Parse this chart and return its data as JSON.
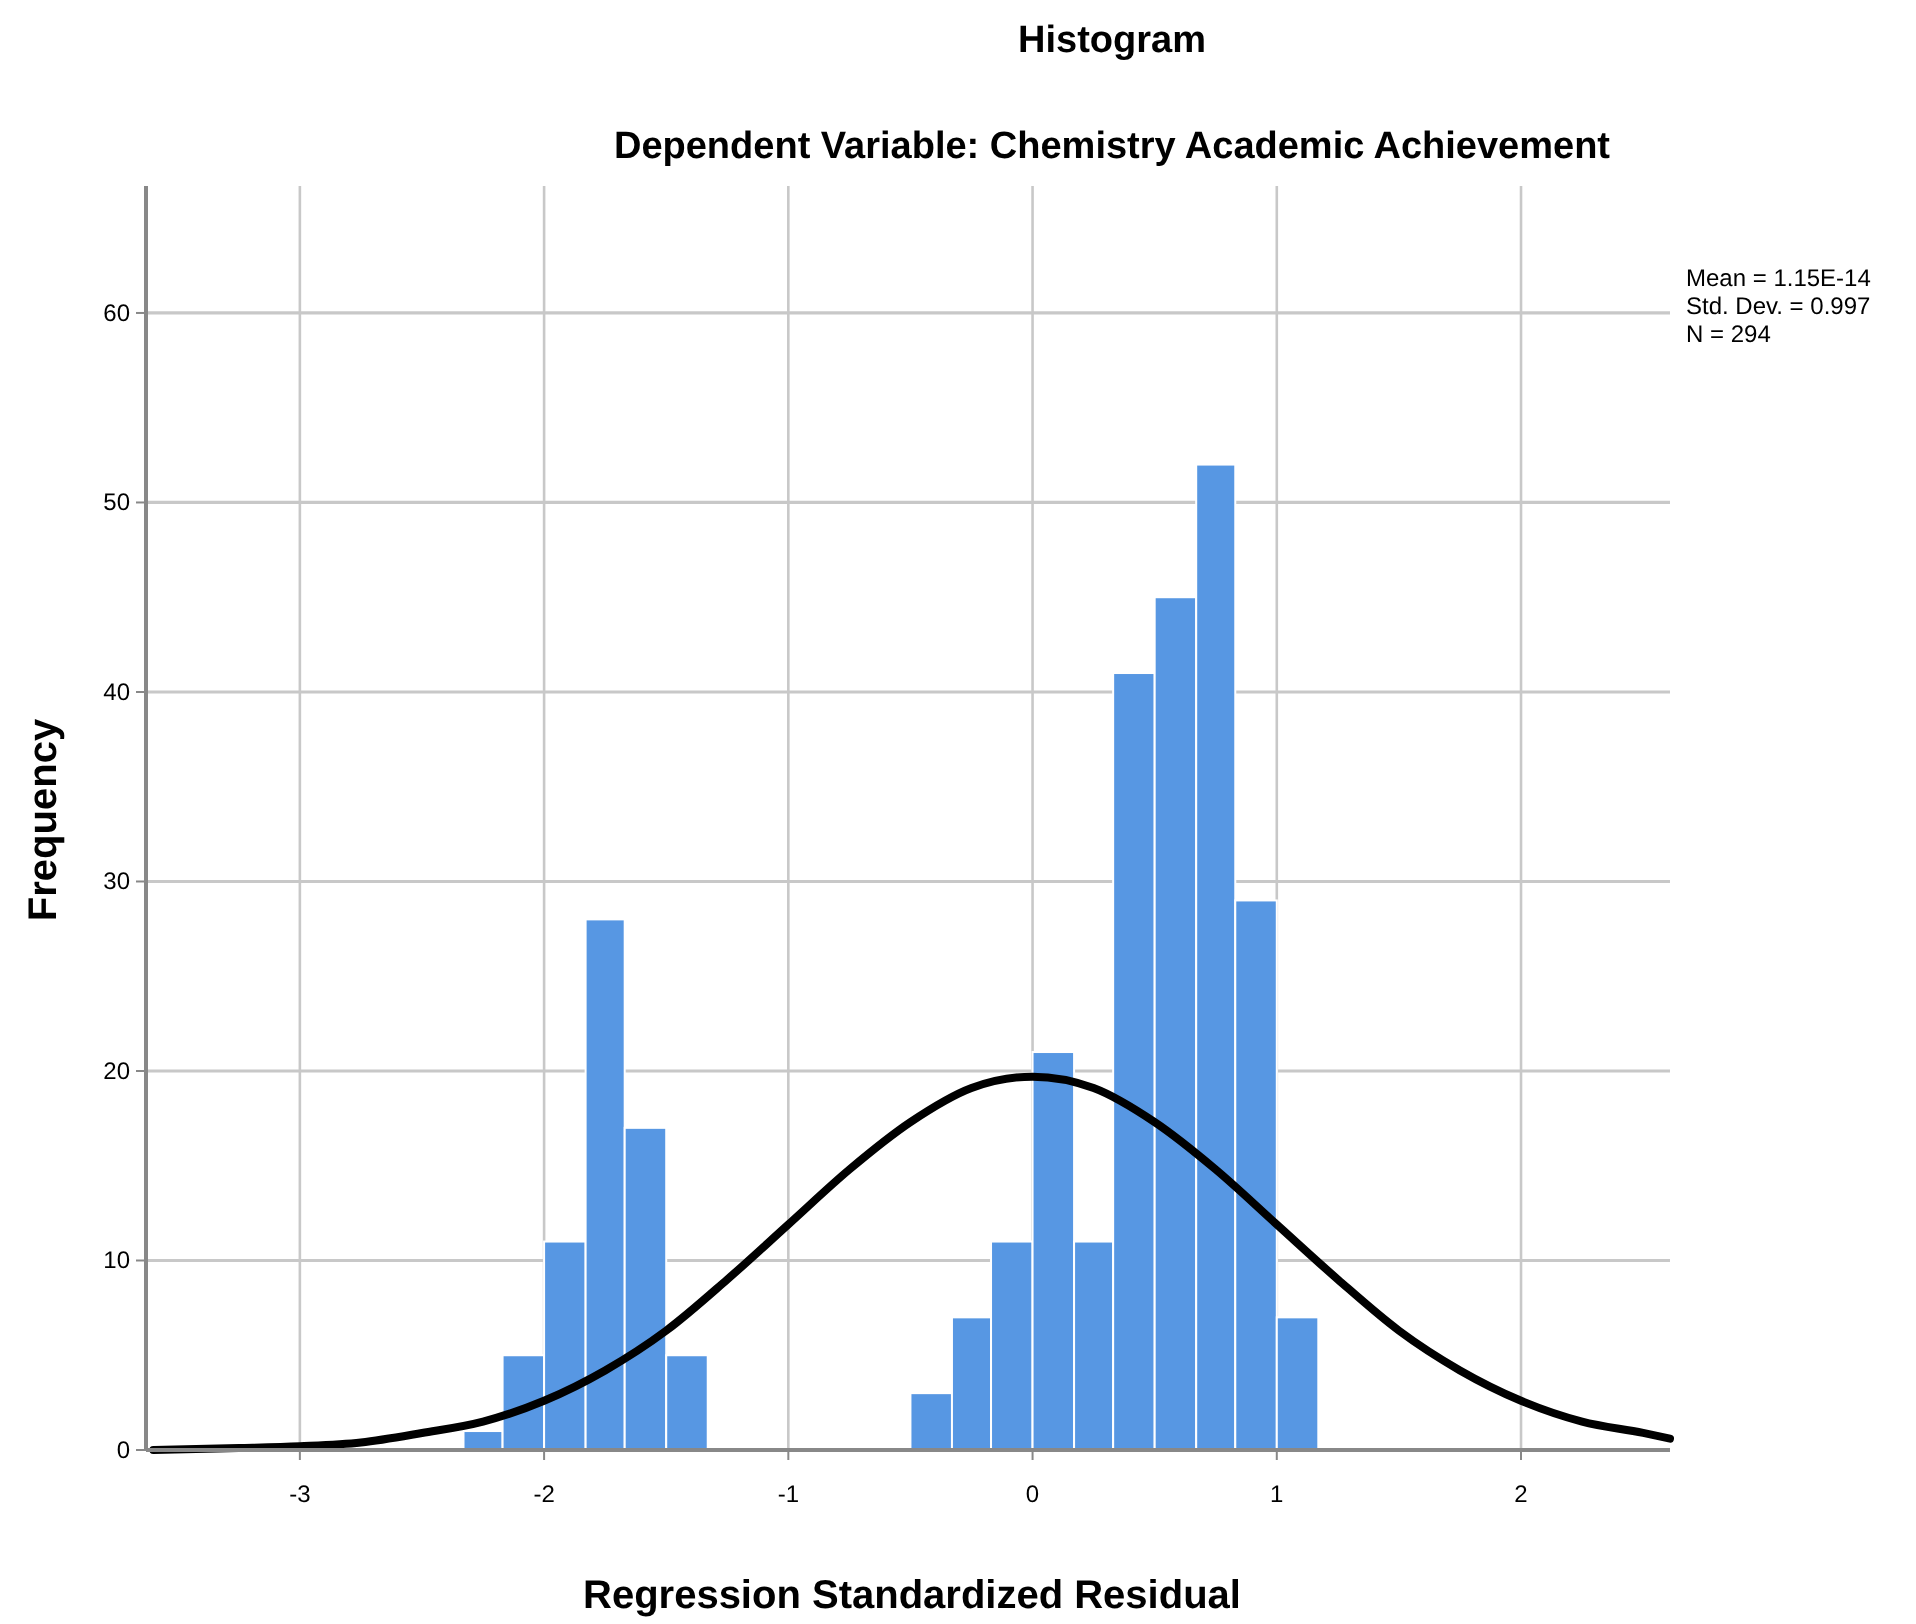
{
  "chart_data": {
    "type": "histogram",
    "title": "Histogram",
    "subtitle": "Dependent Variable: Chemistry Academic Achievement",
    "xlabel": "Regression Standardized Residual",
    "ylabel": "Frequency",
    "annotations": [
      "Mean = 1.15E-14\nStd. Dev. = 0.997\nN = 294"
    ],
    "bins": [
      -2.33,
      -2.17,
      -2,
      -1.83,
      -1.67,
      -1.5,
      -1.33,
      -0.5,
      -0.33,
      -0.17,
      0,
      0.17,
      0.33,
      0.5,
      0.67,
      0.83,
      1,
      1.17
    ],
    "values": [
      1,
      5,
      11,
      28,
      17,
      5,
      0,
      3,
      7,
      11,
      21,
      11,
      41,
      45,
      52,
      29,
      7
    ],
    "color": "#5797e3",
    "series": [
      {
        "type": "line",
        "color": "#000000",
        "x": [
          -3.6,
          -3.25,
          -3,
          -2.75,
          -2.5,
          -2.25,
          -2,
          -1.75,
          -1.5,
          -1.25,
          -1,
          -0.75,
          -0.5,
          -0.25,
          0,
          0.25,
          0.5,
          0.75,
          1,
          1.25,
          1.5,
          1.75,
          2,
          2.25,
          2.5,
          2.61
        ],
        "values": [
          0,
          0.1,
          0.2,
          0.4,
          0.9,
          1.5,
          2.6,
          4.2,
          6.3,
          9,
          11.9,
          14.8,
          17.3,
          19.1,
          19.7,
          19.1,
          17.3,
          14.8,
          11.9,
          9,
          6.3,
          4.2,
          2.6,
          1.5,
          0.9,
          0.6
        ]
      }
    ],
    "xlim": [
      -3.63,
      2.61
    ],
    "ylim": [
      0,
      66.7
    ],
    "xticks": [
      -3,
      -2,
      -1,
      0,
      1,
      2
    ],
    "yticks": [
      0,
      10,
      20,
      30,
      40,
      50,
      60
    ],
    "grid": true
  }
}
